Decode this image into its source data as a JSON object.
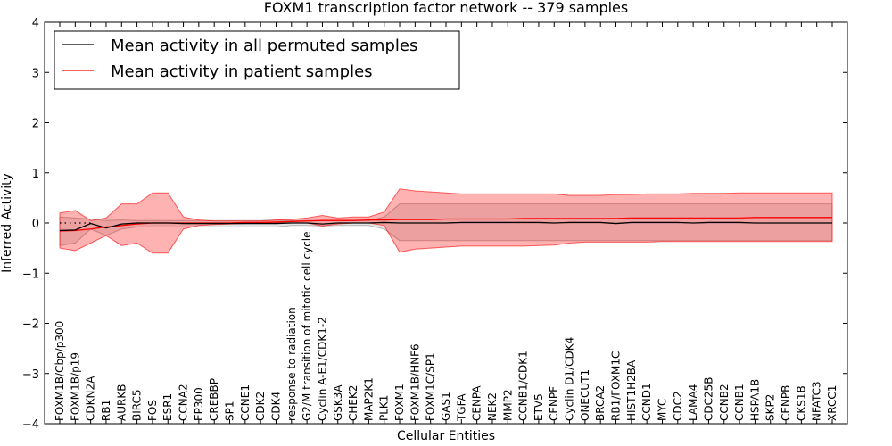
{
  "chart_data": {
    "type": "line",
    "title": "FOXM1 transcription factor network -- 379 samples",
    "xlabel": "Cellular Entities",
    "ylabel": "Inferred Activity",
    "ylim": [
      -4,
      4
    ],
    "yticks": [
      -4,
      -3,
      -2,
      -1,
      0,
      1,
      2,
      3,
      4
    ],
    "ytick_labels": [
      "−4",
      "−3",
      "−2",
      "−1",
      "0",
      "1",
      "2",
      "3",
      "4"
    ],
    "grid": false,
    "legend_position": "top-left",
    "categories": [
      "FOXM1B/Cbp/p300",
      "FOXM1B/p19",
      "CDKN2A",
      "RB1",
      "AURKB",
      "BIRC5",
      "FOS",
      "ESR1",
      "CCNA2",
      "EP300",
      "CREBBP",
      "SP1",
      "CCNE1",
      "CDK2",
      "CDK4",
      "response to radiation",
      "G2/M transition of mitotic cell cycle",
      "Cyclin A-E1/CDK1-2",
      "GSK3A",
      "CHEK2",
      "MAP2K1",
      "PLK1",
      "FOXM1",
      "FOXM1B/HNF6",
      "FOXM1C/SP1",
      "GAS1",
      "TGFA",
      "CENPA",
      "NEK2",
      "MMP2",
      "CCNB1/CDK1",
      "ETV5",
      "CENPF",
      "Cyclin D1/CDK4",
      "ONECUT1",
      "BRCA2",
      "RB1/FOXM1C",
      "HIST1H2BA",
      "CCND1",
      "MYC",
      "CDC2",
      "LAMA4",
      "CDC25B",
      "CCNB2",
      "CCNB1",
      "HSPA1B",
      "SKP2",
      "CENPB",
      "CKS1B",
      "NFATC3",
      "XRCC1"
    ],
    "series": [
      {
        "name": "Mean activity in all permuted samples",
        "color": "#000000",
        "values": [
          -0.15,
          -0.14,
          -0.01,
          -0.1,
          -0.02,
          0.0,
          0.0,
          0.0,
          -0.01,
          -0.01,
          -0.01,
          -0.01,
          -0.01,
          -0.01,
          -0.01,
          0.0,
          0.0,
          -0.02,
          0.0,
          0.0,
          0.0,
          0.01,
          0.0,
          0.0,
          0.0,
          0.0,
          0.01,
          0.01,
          0.01,
          0.01,
          0.01,
          0.01,
          0.0,
          0.01,
          0.01,
          0.01,
          -0.01,
          0.01,
          0.01,
          0.01,
          0.01,
          0.0,
          0.01,
          0.01,
          0.01,
          0.0,
          0.0,
          0.0,
          0.0,
          0.0,
          0.0
        ],
        "band_low": [
          -0.45,
          -0.4,
          -0.12,
          -0.25,
          -0.12,
          -0.08,
          -0.08,
          -0.08,
          -0.08,
          -0.08,
          -0.08,
          -0.08,
          -0.08,
          -0.08,
          -0.08,
          -0.05,
          -0.05,
          -0.06,
          -0.05,
          -0.05,
          -0.05,
          -0.12,
          -0.35,
          -0.35,
          -0.35,
          -0.35,
          -0.35,
          -0.35,
          -0.35,
          -0.35,
          -0.35,
          -0.35,
          -0.35,
          -0.35,
          -0.35,
          -0.35,
          -0.35,
          -0.35,
          -0.35,
          -0.35,
          -0.35,
          -0.35,
          -0.35,
          -0.35,
          -0.35,
          -0.35,
          -0.35,
          -0.35,
          -0.35,
          -0.35,
          -0.35
        ],
        "band_high": [
          0.12,
          0.1,
          0.08,
          0.05,
          0.06,
          0.05,
          0.05,
          0.05,
          0.05,
          0.05,
          0.05,
          0.05,
          0.05,
          0.05,
          0.06,
          0.05,
          0.05,
          0.05,
          0.05,
          0.05,
          0.05,
          0.12,
          0.38,
          0.38,
          0.38,
          0.38,
          0.38,
          0.38,
          0.38,
          0.38,
          0.38,
          0.38,
          0.38,
          0.38,
          0.38,
          0.38,
          0.38,
          0.38,
          0.38,
          0.38,
          0.38,
          0.38,
          0.38,
          0.38,
          0.38,
          0.38,
          0.38,
          0.38,
          0.38,
          0.38,
          0.38
        ]
      },
      {
        "name": "Mean activity in patient samples",
        "color": "#ff0000",
        "values": [
          -0.16,
          -0.15,
          -0.12,
          -0.08,
          -0.05,
          -0.02,
          0.0,
          0.0,
          0.0,
          0.0,
          0.0,
          0.0,
          0.01,
          0.01,
          0.02,
          0.03,
          0.04,
          0.05,
          0.05,
          0.05,
          0.06,
          0.06,
          0.07,
          0.07,
          0.07,
          0.08,
          0.08,
          0.08,
          0.08,
          0.08,
          0.09,
          0.09,
          0.09,
          0.09,
          0.09,
          0.09,
          0.09,
          0.1,
          0.1,
          0.1,
          0.1,
          0.1,
          0.1,
          0.1,
          0.1,
          0.11,
          0.11,
          0.11,
          0.11,
          0.11,
          0.11
        ],
        "band_low": [
          -0.5,
          -0.55,
          -0.4,
          -0.25,
          -0.45,
          -0.4,
          -0.6,
          -0.6,
          -0.12,
          -0.05,
          -0.03,
          -0.02,
          -0.01,
          -0.01,
          0.0,
          0.0,
          0.0,
          -0.06,
          -0.02,
          0.0,
          0.0,
          -0.05,
          -0.58,
          -0.52,
          -0.5,
          -0.48,
          -0.46,
          -0.46,
          -0.46,
          -0.46,
          -0.46,
          -0.45,
          -0.44,
          -0.4,
          -0.38,
          -0.38,
          -0.38,
          -0.38,
          -0.38,
          -0.37,
          -0.37,
          -0.37,
          -0.37,
          -0.37,
          -0.37,
          -0.37,
          -0.37,
          -0.37,
          -0.37,
          -0.37,
          -0.37
        ],
        "band_high": [
          0.2,
          0.25,
          0.05,
          0.1,
          0.38,
          0.38,
          0.6,
          0.6,
          0.12,
          0.06,
          0.04,
          0.04,
          0.04,
          0.04,
          0.06,
          0.07,
          0.1,
          0.15,
          0.1,
          0.12,
          0.12,
          0.22,
          0.68,
          0.64,
          0.62,
          0.6,
          0.58,
          0.58,
          0.58,
          0.58,
          0.58,
          0.58,
          0.58,
          0.55,
          0.55,
          0.55,
          0.57,
          0.57,
          0.58,
          0.58,
          0.58,
          0.59,
          0.59,
          0.59,
          0.6,
          0.6,
          0.6,
          0.6,
          0.6,
          0.6,
          0.6
        ]
      }
    ],
    "reference_line": {
      "y": 0,
      "style": "dotted",
      "extent": "first three categories"
    }
  }
}
